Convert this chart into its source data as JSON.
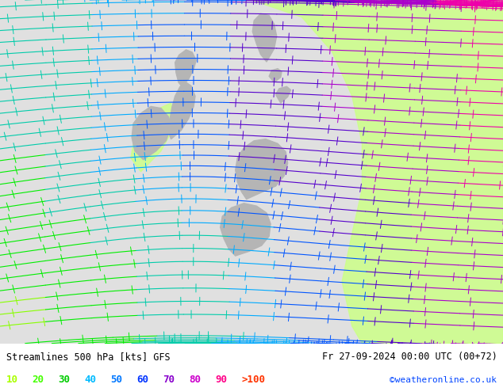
{
  "title_left": "Streamlines 500 hPa [kts] GFS",
  "title_right": "Fr 27-09-2024 00:00 UTC (00+72)",
  "credit": "©weatheronline.co.uk",
  "legend_values": [
    "10",
    "20",
    "30",
    "40",
    "50",
    "60",
    "70",
    "80",
    "90",
    ">100"
  ],
  "legend_colors": [
    "#aaff00",
    "#44ff00",
    "#00cc00",
    "#00bbff",
    "#0077ff",
    "#0033ff",
    "#8800cc",
    "#cc00cc",
    "#ff0088",
    "#ff3300"
  ],
  "bg_color": "#e0e0e0",
  "green_shade_color": "#bbff88",
  "land_gray": "#c8c8c8",
  "title_color": "#000000",
  "credit_color": "#0044ff",
  "fig_width": 6.34,
  "fig_height": 4.9,
  "dpi": 100
}
